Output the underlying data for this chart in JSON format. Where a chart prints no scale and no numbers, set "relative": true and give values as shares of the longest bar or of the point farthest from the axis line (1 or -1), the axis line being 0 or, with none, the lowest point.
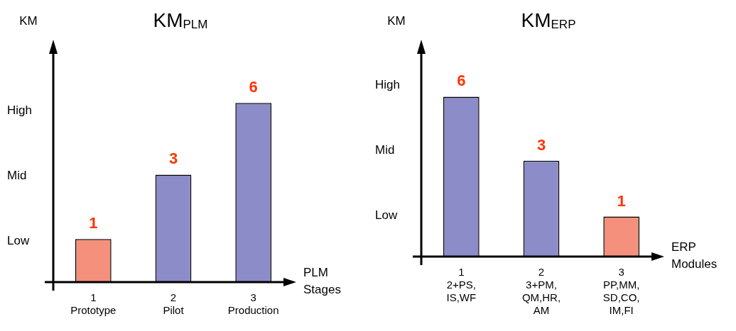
{
  "chart_data": [
    {
      "type": "bar",
      "title": "KM$_{PLM}$",
      "ylabel": "KM",
      "xlabel": "PLM\nStages",
      "relative": true,
      "categories": [
        "1\nPrototype",
        "2\nPilot",
        "3\nProduction"
      ],
      "values": [
        0.24,
        0.6,
        1
      ],
      "colors": [
        "#f4907c",
        "#8c8cc8",
        "#8c8cc8"
      ],
      "annotations": [
        "Low",
        "Mid",
        "High",
        {
          "text": "1",
          "x": "1\nPrototype",
          "y": 0.24
        },
        {
          "text": "3",
          "x": "2\nPilot",
          "y": 0.6
        },
        {
          "text": "6",
          "x": "3\nProduction",
          "y": 1
        }
      ]
    },
    {
      "type": "bar",
      "title": "KM$_{ERP}$",
      "ylabel": "KM",
      "xlabel": "ERP\nModules",
      "relative": true,
      "categories": [
        "1\n2+PS,\nIS,WF",
        "2\n3+PM,\nQM,HR,\nAM",
        "3\nPP,MM,\nSD,CO,\nIM,FI"
      ],
      "values": [
        1,
        0.6,
        0.25
      ],
      "colors": [
        "#8c8cc8",
        "#8c8cc8",
        "#f4907c"
      ],
      "annotations": [
        "Low",
        "Mid",
        "High",
        {
          "text": "6",
          "x": "1\n2+PS,\nIS,WF",
          "y": 1
        },
        {
          "text": "3",
          "x": "2\n3+PM,\nQM,HR,\nAM",
          "y": 0.6
        },
        {
          "text": "1",
          "x": "3\nPP,MM,\nSD,CO,\nIM,FI",
          "y": 0.25
        }
      ]
    }
  ]
}
